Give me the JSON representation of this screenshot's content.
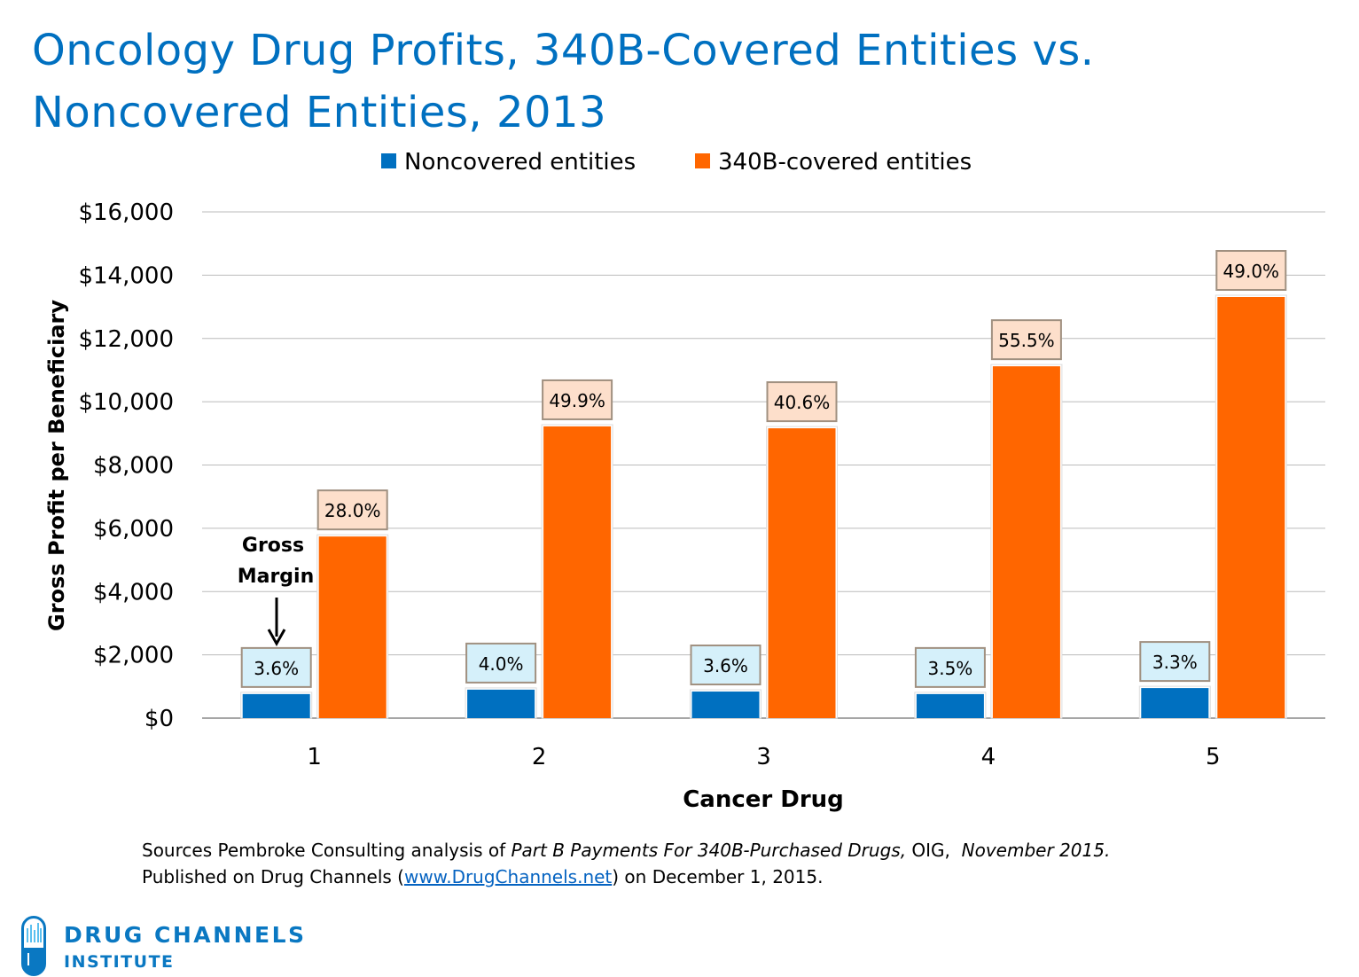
{
  "title": "Oncology Drug Profits, 340B-Covered Entities vs. Noncovered Entities, 2013",
  "chart_data": {
    "type": "bar",
    "xlabel": "Cancer Drug",
    "ylabel": "Gross Profit per Beneficiary",
    "categories": [
      "1",
      "2",
      "3",
      "4",
      "5"
    ],
    "ylim": [
      0,
      16000
    ],
    "yticks": [
      0,
      2000,
      4000,
      6000,
      8000,
      10000,
      12000,
      14000,
      16000
    ],
    "ytick_labels": [
      "$0",
      "$2,000",
      "$4,000",
      "$6,000",
      "$8,000",
      "$10,000",
      "$12,000",
      "$14,000",
      "$16,000"
    ],
    "grid": true,
    "legend_placement": "top-center",
    "series": [
      {
        "name": "Noncovered entities",
        "color": "#0070C0",
        "label_bg": "#D5F0FA",
        "values": [
          760,
          900,
          840,
          760,
          950
        ],
        "data_labels": [
          "3.6%",
          "4.0%",
          "3.6%",
          "3.5%",
          "3.3%"
        ]
      },
      {
        "name": "340B-covered entities",
        "color": "#FF6600",
        "label_bg": "#FDDFCB",
        "values": [
          5740,
          9220,
          9160,
          11120,
          13310
        ],
        "data_labels": [
          "28.0%",
          "49.9%",
          "40.6%",
          "55.5%",
          "49.0%"
        ]
      }
    ],
    "annotation": {
      "line1": "Gross",
      "line2": "Margin"
    }
  },
  "source": {
    "line1_prefix": "Sources Pembroke Consulting analysis of ",
    "line1_italic": "Part B Payments For 340B-Purchased Drugs,",
    "line1_mid": " OIG,  ",
    "line1_date": "November 2015.",
    "line2_prefix": "Published on Drug Channels (",
    "line2_link": "www.DrugChannels.net",
    "line2_suffix": ") on December 1, 2015."
  },
  "logo": {
    "line1": "DRUG CHANNELS",
    "line2": "INSTITUTE"
  }
}
